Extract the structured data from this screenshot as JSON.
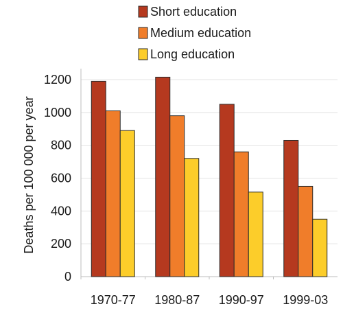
{
  "chart_data": {
    "type": "bar",
    "categories": [
      "1970-77",
      "1980-87",
      "1990-97",
      "1999-03"
    ],
    "series": [
      {
        "name": "Short education",
        "color": "#b5391f",
        "values": [
          1190,
          1215,
          1050,
          830
        ]
      },
      {
        "name": "Medium education",
        "color": "#f07d2a",
        "values": [
          1010,
          980,
          760,
          550
        ]
      },
      {
        "name": "Long education",
        "color": "#fccd2a",
        "values": [
          890,
          720,
          515,
          350
        ]
      }
    ],
    "ylabel": "Deaths per 100 000 per year",
    "xlabel": "",
    "ylim": [
      0,
      1200
    ],
    "yticks": [
      0,
      200,
      400,
      600,
      800,
      1000,
      1200
    ],
    "grid": true,
    "legend_position": "top"
  }
}
